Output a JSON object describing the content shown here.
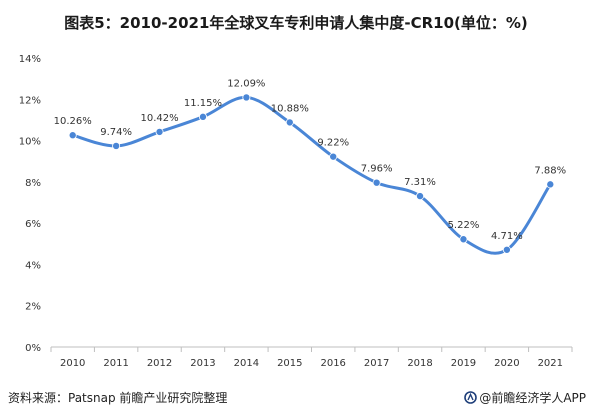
{
  "title": "图表5：2010-2021年全球叉车专利申请人集中度-CR10(单位：%)",
  "footer": {
    "source": "资料来源：Patsnap 前瞻产业研究院整理",
    "brand": "@前瞻经济学人APP"
  },
  "colors": {
    "line": "#4a86d6",
    "axis": "#bfbfbf",
    "text": "#333333"
  },
  "chart_data": {
    "type": "line",
    "title": "图表5：2010-2021年全球叉车专利申请人集中度-CR10(单位：%)",
    "xlabel": "",
    "ylabel": "",
    "categories": [
      "2010",
      "2011",
      "2012",
      "2013",
      "2014",
      "2015",
      "2016",
      "2017",
      "2018",
      "2019",
      "2020",
      "2021"
    ],
    "values": [
      10.26,
      9.74,
      10.42,
      11.15,
      12.09,
      10.88,
      9.22,
      7.96,
      7.31,
      5.22,
      4.71,
      7.88
    ],
    "value_labels": [
      "10.26%",
      "9.74%",
      "10.42%",
      "11.15%",
      "12.09%",
      "10.88%",
      "9.22%",
      "7.96%",
      "7.31%",
      "5.22%",
      "4.71%",
      "7.88%"
    ],
    "ylim": [
      0,
      14
    ],
    "yticks": [
      "0%",
      "2%",
      "4%",
      "6%",
      "8%",
      "10%",
      "12%",
      "14%"
    ],
    "smooth": true,
    "grid": false
  }
}
